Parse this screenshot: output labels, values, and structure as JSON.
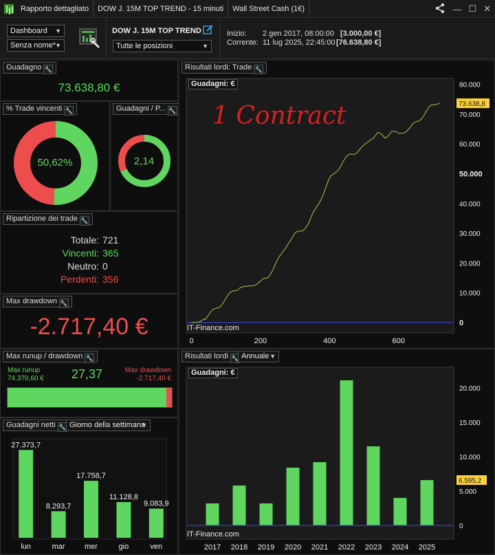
{
  "titlebar": {
    "tabs": [
      "Rapporto dettagliato",
      "DOW J. 15M TOP TREND - 15 minuti",
      "Wall Street Cash (1€)"
    ],
    "icons": [
      "share-icon",
      "minimize-icon",
      "maximize-icon",
      "close-icon"
    ]
  },
  "header": {
    "dashboard_select": "Dashboard",
    "name_select": "Senza nome*",
    "strategy_name": "DOW J. 15M TOP TREND",
    "positions_select": "Tutte le posizioni",
    "start_label": "Inizio:",
    "start_date": "2 gen 2017, 08:00:00",
    "start_value": "[3.000,00 €]",
    "current_label": "Corrente:",
    "current_date": "11 lug 2025, 22:45:00",
    "current_value": "[76.638,80 €]"
  },
  "gain_panel": {
    "title": "Guadagno",
    "value": "73.638,80 €"
  },
  "win_pct_panel": {
    "title": "% Trade vincenti",
    "value": "50,62%",
    "fraction": 0.5062
  },
  "gain_loss_panel": {
    "title": "Guadagni / P...",
    "value": "2,14",
    "fraction": 0.68
  },
  "breakdown_panel": {
    "title": "Ripartizione dei trade",
    "rows": [
      {
        "label": "Totale:",
        "value": "721"
      },
      {
        "label": "Vincenti:",
        "value": "365"
      },
      {
        "label": "Neutro:",
        "value": "0"
      },
      {
        "label": "Perdenti:",
        "value": "356"
      }
    ]
  },
  "drawdown_panel": {
    "title": "Max drawdown",
    "value": "-2.717,40 €"
  },
  "runup_panel": {
    "title": "Max runup / drawdown",
    "runup_label": "Max runup",
    "runup_value": "74.370,60 €",
    "ratio": "27,37",
    "drawdown_label": "Max drawdown",
    "drawdown_value": "-2.717,40 €",
    "runup_fraction": 0.965
  },
  "weekday_panel": {
    "title": "Guadagni netti",
    "select": "Giorno della settimana"
  },
  "equity_panel": {
    "title": "Risultati lordi: Trade",
    "annotation": "1 Contract",
    "watermark": "IT-Finance.com",
    "tag": "Guadagni: €",
    "last_label": "73.638,8"
  },
  "yearly_panel": {
    "title": "Risultati lordi",
    "select": "Annuale",
    "watermark": "IT-Finance.com",
    "tag": "Guadagni: €",
    "last_label": "6.595,2"
  },
  "colors": {
    "green": "#5fd65f",
    "red": "#ee4d4d",
    "line": "#9ccc4a",
    "highlight": "#ffd23c"
  },
  "chart_data": [
    {
      "type": "bar",
      "title": "Guadagni netti",
      "categories": [
        "lun",
        "mar",
        "mer",
        "gio",
        "ven"
      ],
      "values": [
        27373.7,
        8293.7,
        17758.7,
        11128.8,
        9083.9
      ],
      "value_labels": [
        "27.373,7",
        "8.293,7",
        "17.758,7",
        "11.128,8",
        "9.083,9"
      ],
      "ylim": [
        0,
        30000
      ]
    },
    {
      "type": "line",
      "title": "Risultati lordi: Trade",
      "x": [
        0,
        15,
        25,
        40,
        60,
        80,
        100,
        120,
        140,
        160,
        180,
        200,
        220,
        240,
        260,
        280,
        300,
        320,
        340,
        360,
        380,
        400,
        420,
        440,
        460,
        480,
        500,
        520,
        540,
        560,
        580,
        600,
        620,
        640,
        660,
        680,
        700,
        721
      ],
      "y": [
        0,
        0,
        300,
        1500,
        3500,
        5500,
        8000,
        10500,
        12000,
        11500,
        13000,
        13500,
        15000,
        19000,
        22500,
        27000,
        29500,
        31000,
        33500,
        38000,
        43000,
        48000,
        51000,
        54000,
        56500,
        57500,
        59000,
        62000,
        63500,
        62000,
        64500,
        63000,
        64500,
        66000,
        68000,
        71000,
        73000,
        73638.8
      ],
      "xticks": [
        "0",
        "200",
        "400",
        "600"
      ],
      "yticks": [
        "0",
        "10.000",
        "20.000",
        "30.000",
        "40.000",
        "50.000",
        "60.000",
        "70.000",
        "80.000"
      ],
      "xlim": [
        -15,
        760
      ],
      "ylim": [
        -3500,
        82000
      ]
    },
    {
      "type": "bar",
      "title": "Risultati lordi",
      "categories": [
        "2017",
        "2018",
        "2019",
        "2020",
        "2021",
        "2022",
        "2023",
        "2024",
        "2025"
      ],
      "values": [
        3200,
        5800,
        3200,
        8400,
        9200,
        21100,
        11500,
        4000,
        6595.2
      ],
      "yticks": [
        "0",
        "5.000",
        "10.000",
        "15.000",
        "20.000"
      ],
      "ylim": [
        -2000,
        23000
      ]
    }
  ]
}
